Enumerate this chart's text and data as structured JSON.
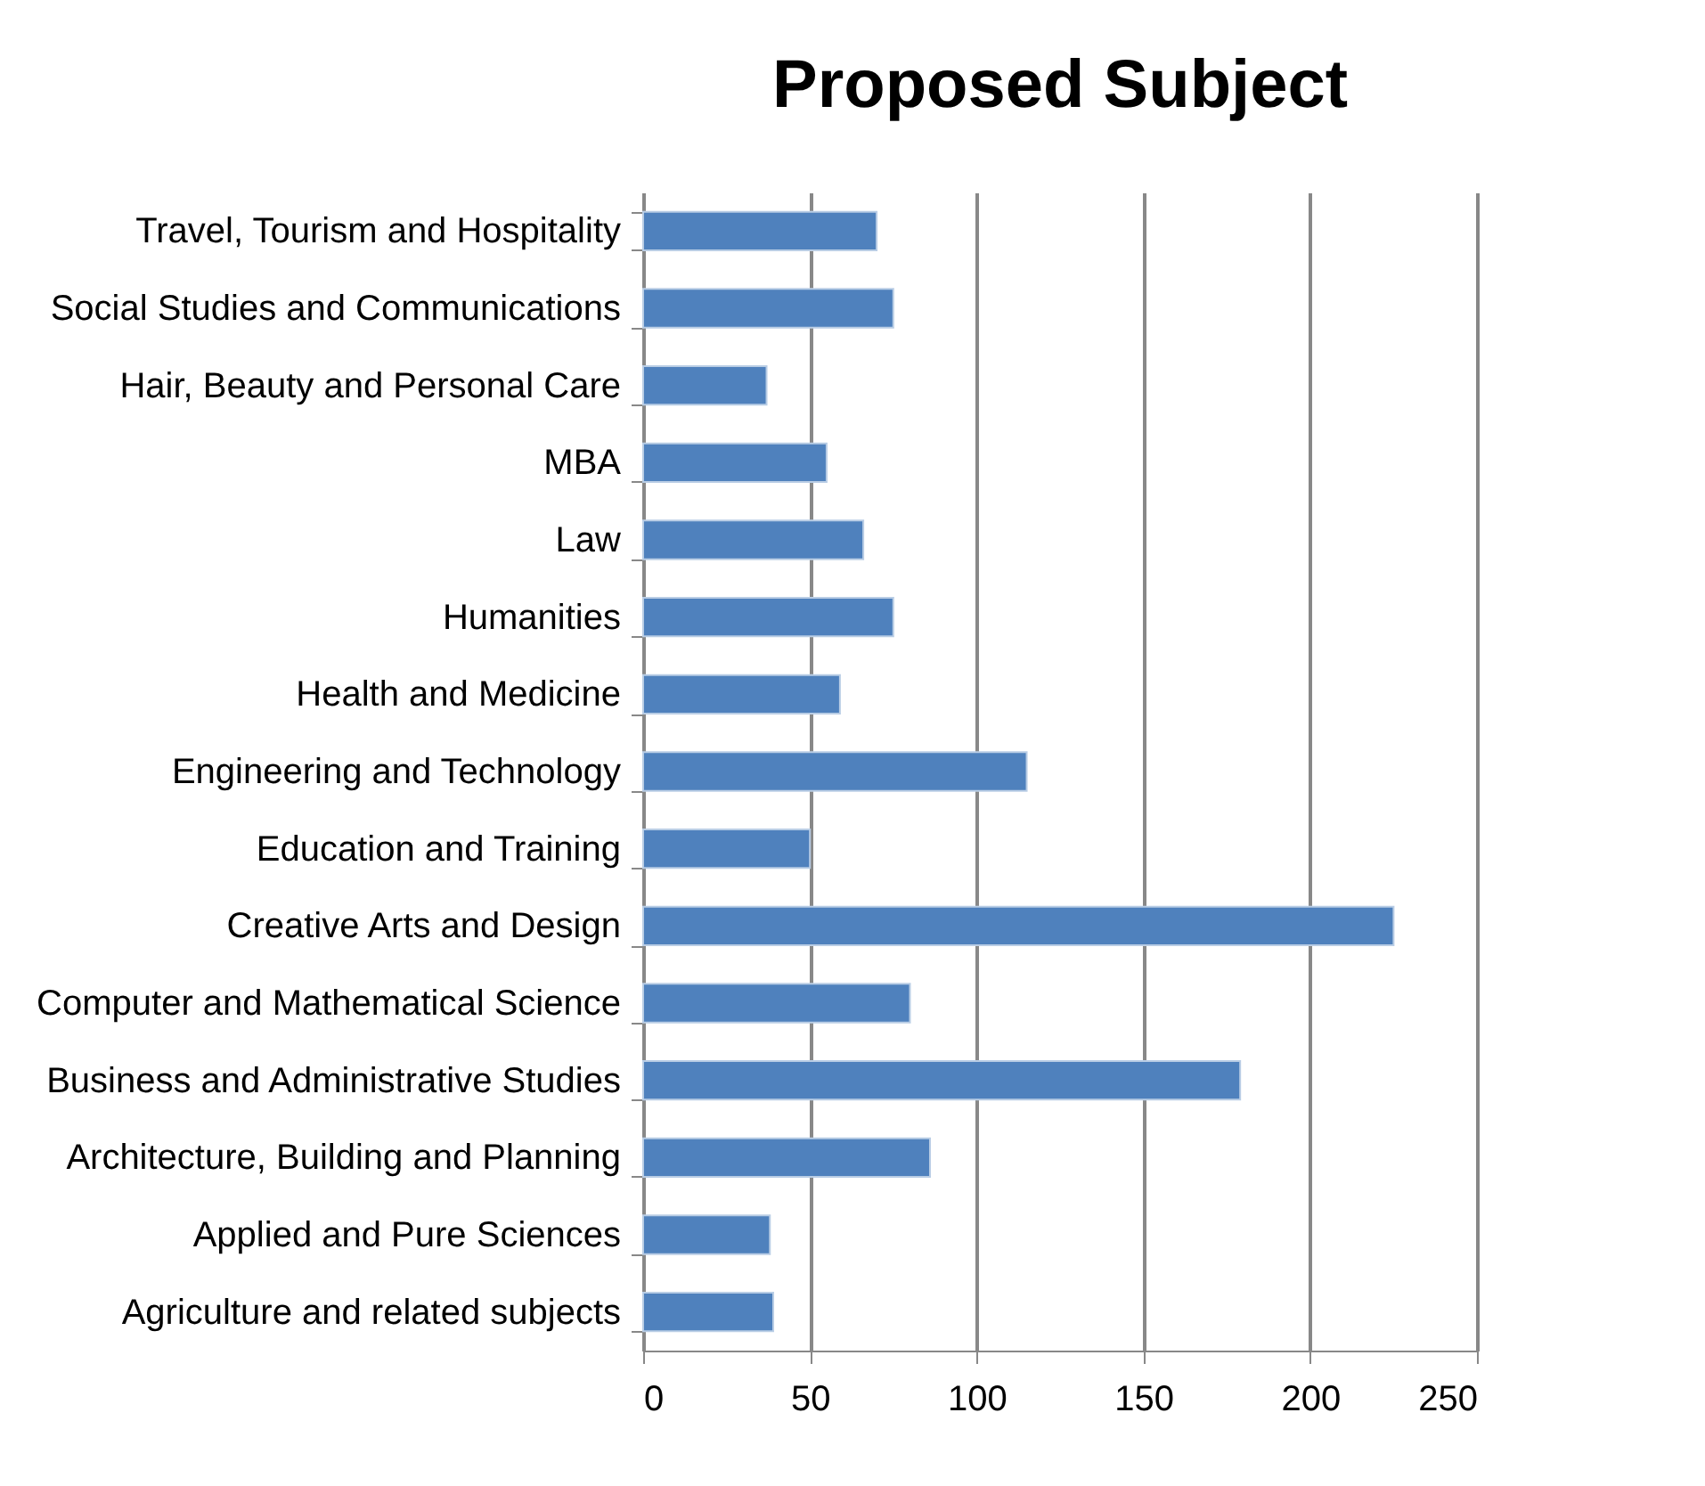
{
  "chart_data": {
    "type": "bar",
    "orientation": "horizontal",
    "title": "Proposed Subject",
    "categories": [
      "Travel, Tourism and Hospitality",
      "Social Studies and Communications",
      "Hair, Beauty and Personal Care",
      "MBA",
      "Law",
      "Humanities",
      "Health and Medicine",
      "Engineering and Technology",
      "Education and Training",
      "Creative Arts and Design",
      "Computer and Mathematical Science",
      "Business and Administrative Studies",
      "Architecture, Building and Planning",
      "Applied and Pure Sciences",
      "Agriculture and related subjects"
    ],
    "values": [
      70,
      75,
      37,
      55,
      66,
      75,
      59,
      115,
      50,
      225,
      80,
      179,
      86,
      38,
      39
    ],
    "color": "#4f81bd",
    "xlim": [
      0,
      250
    ],
    "xticks": [
      0,
      50,
      100,
      150,
      200,
      250
    ],
    "grid": "x"
  }
}
